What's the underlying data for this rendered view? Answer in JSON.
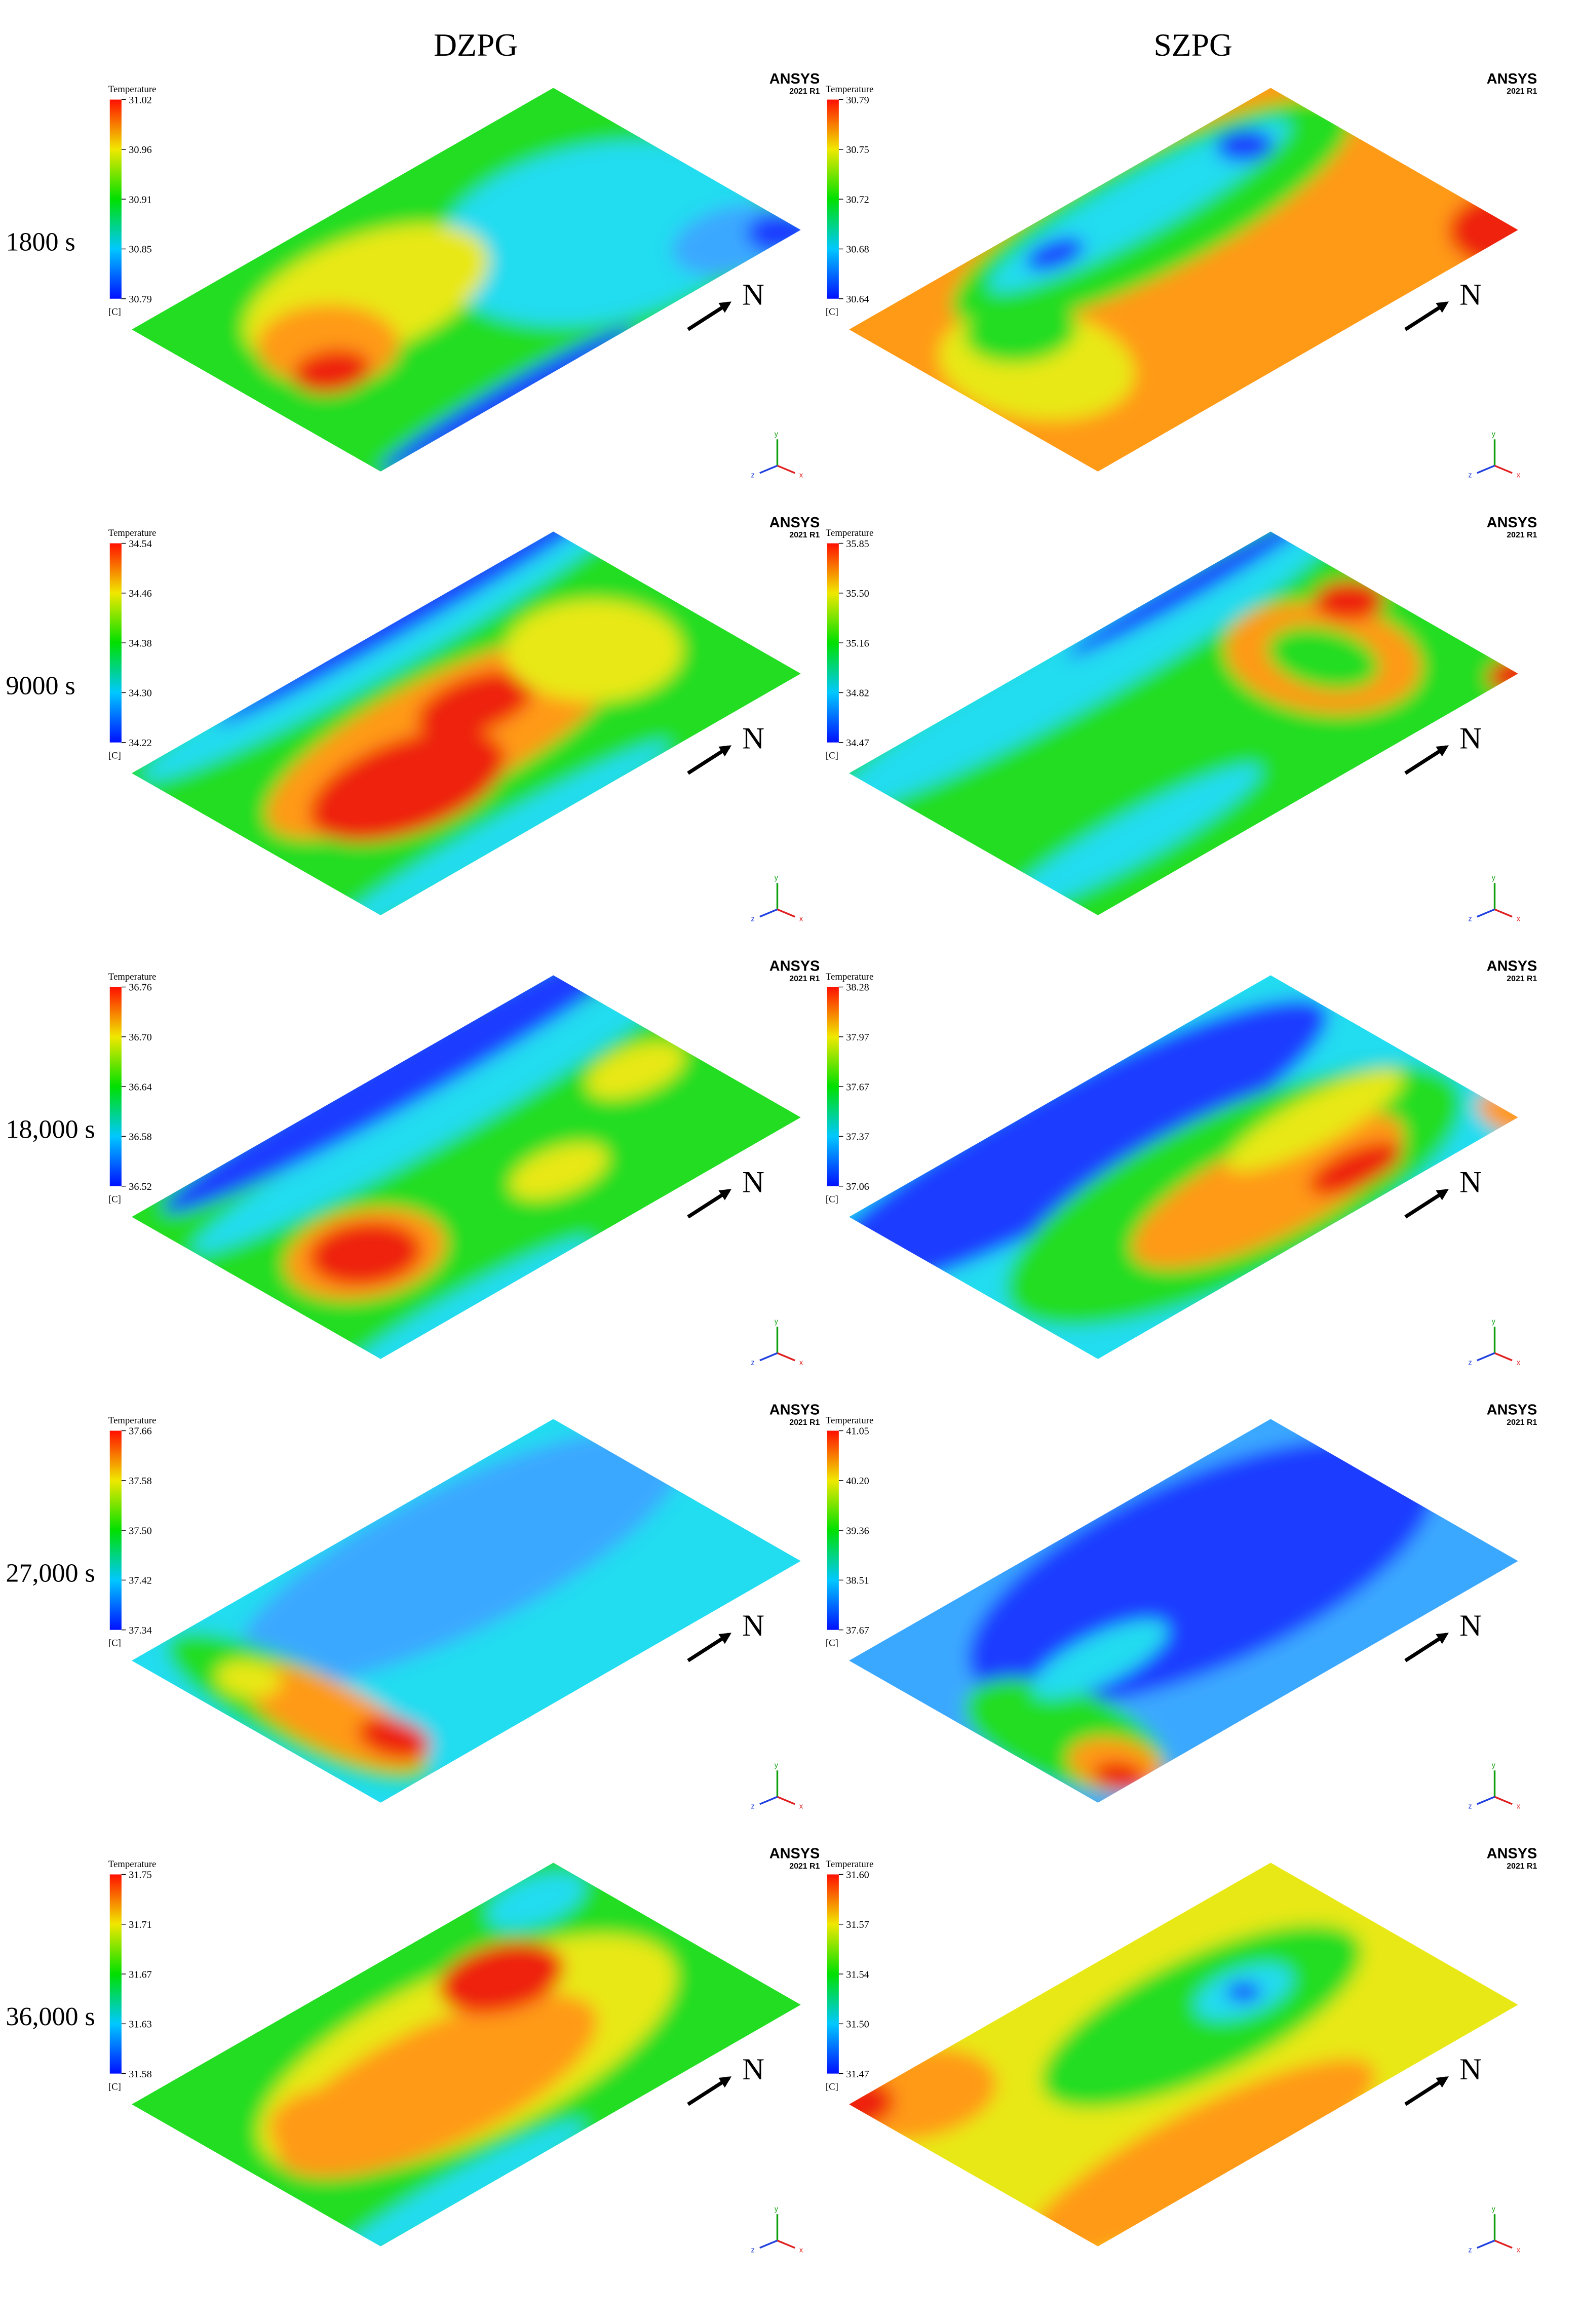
{
  "columns": [
    "DZPG",
    "SZPG"
  ],
  "rows": [
    {
      "label": "1800 s",
      "panels": [
        {
          "colorbar": {
            "title": "Temperature",
            "ticks": [
              "31.02",
              "30.96",
              "30.91",
              "30.85",
              "30.79"
            ],
            "unit": "[C]"
          }
        },
        {
          "colorbar": {
            "title": "Temperature",
            "ticks": [
              "30.79",
              "30.75",
              "30.72",
              "30.68",
              "30.64"
            ],
            "unit": "[C]"
          }
        }
      ]
    },
    {
      "label": "9000 s",
      "panels": [
        {
          "colorbar": {
            "title": "Temperature",
            "ticks": [
              "34.54",
              "34.46",
              "34.38",
              "34.30",
              "34.22"
            ],
            "unit": "[C]"
          }
        },
        {
          "colorbar": {
            "title": "Temperature",
            "ticks": [
              "35.85",
              "35.50",
              "35.16",
              "34.82",
              "34.47"
            ],
            "unit": "[C]"
          }
        }
      ]
    },
    {
      "label": "18,000 s",
      "panels": [
        {
          "colorbar": {
            "title": "Temperature",
            "ticks": [
              "36.76",
              "36.70",
              "36.64",
              "36.58",
              "36.52"
            ],
            "unit": "[C]"
          }
        },
        {
          "colorbar": {
            "title": "Temperature",
            "ticks": [
              "38.28",
              "37.97",
              "37.67",
              "37.37",
              "37.06"
            ],
            "unit": "[C]"
          }
        }
      ]
    },
    {
      "label": "27,000 s",
      "panels": [
        {
          "colorbar": {
            "title": "Temperature",
            "ticks": [
              "37.66",
              "37.58",
              "37.50",
              "37.42",
              "37.34"
            ],
            "unit": "[C]"
          }
        },
        {
          "colorbar": {
            "title": "Temperature",
            "ticks": [
              "41.05",
              "40.20",
              "39.36",
              "38.51",
              "37.67"
            ],
            "unit": "[C]"
          }
        }
      ]
    },
    {
      "label": "36,000 s",
      "panels": [
        {
          "colorbar": {
            "title": "Temperature",
            "ticks": [
              "31.75",
              "31.71",
              "31.67",
              "31.63",
              "31.58"
            ],
            "unit": "[C]"
          }
        },
        {
          "colorbar": {
            "title": "Temperature",
            "ticks": [
              "31.60",
              "31.57",
              "31.54",
              "31.50",
              "31.47"
            ],
            "unit": "[C]"
          }
        }
      ]
    }
  ],
  "logo": {
    "name": "ANSYS",
    "version": "2021 R1"
  },
  "north": "N",
  "axes": {
    "x": "x",
    "y": "y",
    "z": "z"
  }
}
